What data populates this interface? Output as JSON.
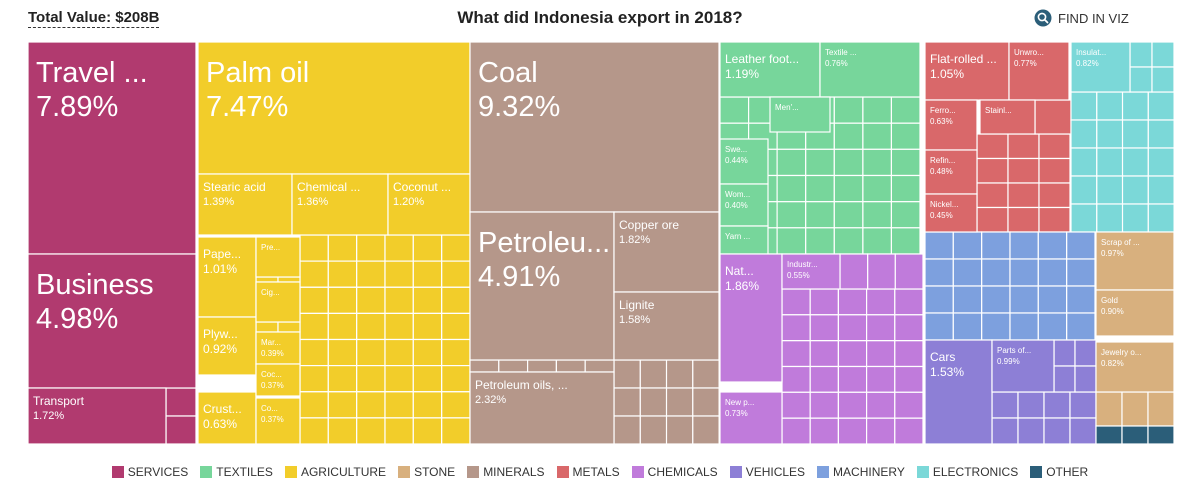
{
  "header": {
    "total_label": "Total Value: $208B",
    "title": "What did Indonesia export in 2018?",
    "find_label": "FIND IN VIZ"
  },
  "colors": {
    "SERVICES": "#b13a6f",
    "TEXTILES": "#77d69b",
    "AGRICULTURE": "#f2cd2a",
    "STONE": "#d8b07e",
    "MINERALS": "#b5978a",
    "METALS": "#d9686a",
    "CHEMICALS": "#c07bdb",
    "VEHICLES": "#8d7fd6",
    "MACHINERY": "#7da0de",
    "ELECTRONICS": "#7bd8d8",
    "OTHER": "#2b5e79"
  },
  "legend": [
    "SERVICES",
    "TEXTILES",
    "AGRICULTURE",
    "STONE",
    "MINERALS",
    "METALS",
    "CHEMICALS",
    "VEHICLES",
    "MACHINERY",
    "ELECTRONICS",
    "OTHER"
  ],
  "chart_data": {
    "type": "treemap",
    "title": "What did Indonesia export in 2018?",
    "total": "Total Value: $208B",
    "unit": "% of total exports",
    "items": [
      {
        "name": "Travel ...",
        "category": "SERVICES",
        "value": 7.89
      },
      {
        "name": "Business",
        "category": "SERVICES",
        "value": 4.98
      },
      {
        "name": "Transport",
        "category": "SERVICES",
        "value": 1.72
      },
      {
        "name": "Palm oil",
        "category": "AGRICULTURE",
        "value": 7.47
      },
      {
        "name": "Stearic acid",
        "category": "AGRICULTURE",
        "value": 1.39
      },
      {
        "name": "Chemical ...",
        "category": "AGRICULTURE",
        "value": 1.36
      },
      {
        "name": "Coconut ...",
        "category": "AGRICULTURE",
        "value": 1.2
      },
      {
        "name": "Pape...",
        "category": "AGRICULTURE",
        "value": 1.01
      },
      {
        "name": "Plyw...",
        "category": "AGRICULTURE",
        "value": 0.92
      },
      {
        "name": "Crust...",
        "category": "AGRICULTURE",
        "value": 0.63
      },
      {
        "name": "Mar...",
        "category": "AGRICULTURE",
        "value": 0.39
      },
      {
        "name": "Coc...",
        "category": "AGRICULTURE",
        "value": 0.37
      },
      {
        "name": "Co...",
        "category": "AGRICULTURE",
        "value": 0.37
      },
      {
        "name": "Pre...",
        "category": "AGRICULTURE",
        "value": null
      },
      {
        "name": "Cig...",
        "category": "AGRICULTURE",
        "value": null
      },
      {
        "name": "Coal",
        "category": "MINERALS",
        "value": 9.32
      },
      {
        "name": "Petroleu...",
        "category": "MINERALS",
        "value": 4.91
      },
      {
        "name": "Copper ore",
        "category": "MINERALS",
        "value": 1.82
      },
      {
        "name": "Lignite",
        "category": "MINERALS",
        "value": 1.58
      },
      {
        "name": "Petroleum oils, ...",
        "category": "MINERALS",
        "value": 2.32
      },
      {
        "name": "Leather foot...",
        "category": "TEXTILES",
        "value": 1.19
      },
      {
        "name": "Textile ...",
        "category": "TEXTILES",
        "value": 0.76
      },
      {
        "name": "Swe...",
        "category": "TEXTILES",
        "value": 0.44
      },
      {
        "name": "Wom...",
        "category": "TEXTILES",
        "value": 0.4
      },
      {
        "name": "Men'...",
        "category": "TEXTILES",
        "value": null
      },
      {
        "name": "Yarn ...",
        "category": "TEXTILES",
        "value": null
      },
      {
        "name": "Flat-rolled ...",
        "category": "METALS",
        "value": 1.05
      },
      {
        "name": "Unwro...",
        "category": "METALS",
        "value": 0.77
      },
      {
        "name": "Ferro...",
        "category": "METALS",
        "value": 0.63
      },
      {
        "name": "Refin...",
        "category": "METALS",
        "value": 0.48
      },
      {
        "name": "Nickel...",
        "category": "METALS",
        "value": 0.45
      },
      {
        "name": "Stainl...",
        "category": "METALS",
        "value": null
      },
      {
        "name": "Insulat...",
        "category": "ELECTRONICS",
        "value": 0.82
      },
      {
        "name": "Nat...",
        "category": "CHEMICALS",
        "value": 1.86
      },
      {
        "name": "Industr...",
        "category": "CHEMICALS",
        "value": 0.55
      },
      {
        "name": "New p...",
        "category": "CHEMICALS",
        "value": 0.73
      },
      {
        "name": "Cars",
        "category": "VEHICLES",
        "value": 1.53
      },
      {
        "name": "Parts of...",
        "category": "VEHICLES",
        "value": 0.99
      },
      {
        "name": "Scrap of ...",
        "category": "STONE",
        "value": 0.97
      },
      {
        "name": "Gold",
        "category": "STONE",
        "value": 0.9
      },
      {
        "name": "Jewelry o...",
        "category": "STONE",
        "value": 0.82
      }
    ]
  }
}
